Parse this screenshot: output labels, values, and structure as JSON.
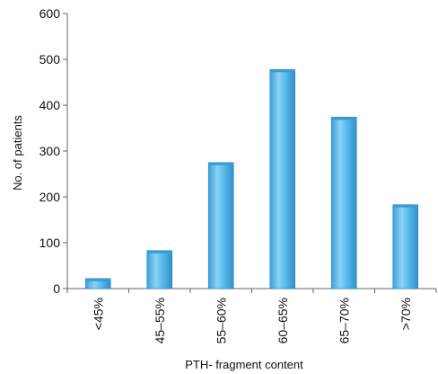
{
  "chart_data": {
    "type": "bar",
    "title": "",
    "xlabel": "PTH- fragment content",
    "ylabel": "No. of patients",
    "categories": [
      "<45%",
      "45–55%",
      "55–60%",
      "60–65%",
      "65–70%",
      ">70%"
    ],
    "values": [
      22,
      83,
      275,
      478,
      374,
      183
    ],
    "ylim": [
      0,
      600
    ],
    "yticks": [
      "0",
      "100",
      "200",
      "300",
      "400",
      "500",
      "600"
    ],
    "grid": false,
    "bar_color": "#5bbcec"
  }
}
